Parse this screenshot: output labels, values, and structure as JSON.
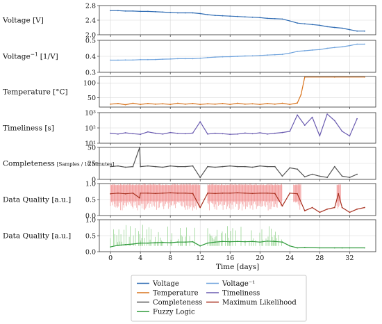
{
  "chart_data": {
    "type": "line",
    "x_axis": {
      "label": "Time [days]",
      "range": [
        -1.5,
        35.5
      ],
      "ticks": [
        0,
        4,
        8,
        12,
        16,
        20,
        24,
        28,
        32
      ],
      "tick_labels": [
        "0",
        "4",
        "8",
        "12",
        "16",
        "20",
        "24",
        "28",
        "32"
      ]
    },
    "panels": [
      {
        "id": "voltage",
        "ylabel": "Voltage [V]",
        "ylim": [
          2.0,
          2.8
        ],
        "yscale": "linear",
        "yticks": [
          2.0,
          2.4,
          2.8
        ],
        "ytick_labels": [
          "2.0",
          "2.4",
          "2.8"
        ],
        "grid": true,
        "series": [
          {
            "name": "Voltage",
            "color": "#2e6bb3",
            "x": [
              0,
              1,
              2,
              3,
              4,
              5,
              6,
              7,
              8,
              9,
              10,
              11,
              12,
              13,
              14,
              15,
              16,
              17,
              18,
              19,
              20,
              21,
              22,
              23,
              24,
              25,
              26,
              27,
              28,
              29,
              30,
              31,
              32,
              33,
              34
            ],
            "y": [
              2.66,
              2.66,
              2.65,
              2.65,
              2.64,
              2.64,
              2.63,
              2.62,
              2.61,
              2.6,
              2.6,
              2.6,
              2.58,
              2.55,
              2.53,
              2.52,
              2.51,
              2.5,
              2.49,
              2.48,
              2.47,
              2.45,
              2.44,
              2.43,
              2.38,
              2.32,
              2.3,
              2.28,
              2.26,
              2.22,
              2.2,
              2.18,
              2.14,
              2.1,
              2.1
            ]
          }
        ]
      },
      {
        "id": "inverse-voltage",
        "ylabel": "Voltage",
        "ylabel_superscript": "−1",
        "ylabel_unit": "[1/V]",
        "ylim": [
          0.3,
          0.5
        ],
        "yscale": "linear",
        "yticks": [
          0.3,
          0.4,
          0.5
        ],
        "ytick_labels": [
          "0.3",
          "0.4",
          "0.5"
        ],
        "grid": true,
        "series": [
          {
            "name": "Voltage⁻¹",
            "color": "#6fa3dd",
            "x": [
              0,
              1,
              2,
              3,
              4,
              5,
              6,
              7,
              8,
              9,
              10,
              11,
              12,
              13,
              14,
              15,
              16,
              17,
              18,
              19,
              20,
              21,
              22,
              23,
              24,
              25,
              26,
              27,
              28,
              29,
              30,
              31,
              32,
              33,
              34
            ],
            "y": [
              0.376,
              0.376,
              0.377,
              0.377,
              0.379,
              0.379,
              0.38,
              0.382,
              0.383,
              0.385,
              0.385,
              0.385,
              0.388,
              0.392,
              0.395,
              0.397,
              0.398,
              0.4,
              0.402,
              0.403,
              0.405,
              0.408,
              0.41,
              0.412,
              0.42,
              0.431,
              0.435,
              0.439,
              0.442,
              0.45,
              0.455,
              0.459,
              0.467,
              0.476,
              0.476
            ]
          }
        ]
      },
      {
        "id": "temperature",
        "ylabel": "Temperature [°C]",
        "ylim": [
          18,
          122
        ],
        "yscale": "linear",
        "yticks": [
          50,
          100
        ],
        "ytick_labels": [
          "50",
          "100"
        ],
        "grid": true,
        "series": [
          {
            "name": "Temperature",
            "color": "#d9731c",
            "x": [
              0,
              1,
              2,
              3,
              4,
              5,
              6,
              7,
              8,
              9,
              10,
              11,
              12,
              13,
              14,
              15,
              16,
              17,
              18,
              19,
              20,
              21,
              22,
              23,
              24,
              25,
              25.5,
              26,
              30,
              34
            ],
            "y": [
              28,
              30,
              26,
              31,
              27,
              30,
              28,
              29,
              27,
              31,
              28,
              30,
              27,
              29,
              28,
              30,
              27,
              31,
              28,
              29,
              27,
              30,
              28,
              31,
              27,
              32,
              60,
              120,
              120,
              120
            ]
          }
        ]
      },
      {
        "id": "timeliness",
        "ylabel": "Timeliness [s]",
        "ylim": [
          10,
          1000
        ],
        "yscale": "log",
        "yticks": [
          10,
          100,
          1000
        ],
        "ytick_labels": [
          "10¹",
          "10²",
          "10³"
        ],
        "grid": true,
        "series": [
          {
            "name": "Timeliness",
            "color": "#6a5bb0",
            "x": [
              0,
              1,
              2,
              3,
              4,
              5,
              6,
              7,
              8,
              9,
              10,
              11,
              12,
              13,
              14,
              15,
              16,
              17,
              18,
              19,
              20,
              21,
              22,
              23,
              24,
              25,
              26,
              27,
              28,
              29,
              30,
              31,
              32,
              33
            ],
            "y": [
              45,
              40,
              48,
              42,
              38,
              55,
              45,
              40,
              50,
              44,
              42,
              46,
              250,
              40,
              45,
              42,
              38,
              40,
              46,
              42,
              48,
              40,
              45,
              50,
              60,
              700,
              150,
              500,
              30,
              800,
              300,
              60,
              30,
              400
            ]
          }
        ]
      },
      {
        "id": "completeness",
        "ylabel": "Completeness",
        "ylabel_unit": "[Samples / 10 Minutes]",
        "ylim": [
          0,
          50
        ],
        "yscale": "linear",
        "yticks": [
          0,
          25,
          50
        ],
        "ytick_labels": [
          "0",
          "25",
          "50"
        ],
        "grid": true,
        "series": [
          {
            "name": "Completeness",
            "color": "#555555",
            "x": [
              0,
              1,
              2,
              3,
              3.9,
              4,
              5,
              6,
              7,
              8,
              9,
              10,
              11,
              12,
              13,
              14,
              15,
              16,
              17,
              18,
              19,
              20,
              21,
              22,
              23,
              24,
              25,
              26,
              27,
              28,
              29,
              30,
              31,
              32,
              33
            ],
            "y": [
              20,
              21,
              19,
              20,
              50,
              20,
              21,
              20,
              19,
              21,
              20,
              20,
              21,
              3,
              20,
              19,
              20,
              21,
              20,
              20,
              19,
              21,
              20,
              20,
              5,
              18,
              16,
              4,
              8,
              5,
              3,
              20,
              5,
              3,
              8
            ]
          }
        ]
      },
      {
        "id": "data-quality-ml",
        "ylabel": "Data Quality [a.u.]",
        "ylim": [
          0,
          1
        ],
        "yscale": "linear",
        "yticks": [
          0,
          0.5,
          1
        ],
        "ytick_labels": [
          "0.0",
          "0.5",
          "1.0"
        ],
        "grid": true,
        "band": {
          "color": "#f08080",
          "lower": 0.45,
          "upper": 0.95,
          "x_segments": [
            [
              0,
              12
            ],
            [
              13,
              23
            ],
            [
              24.5,
              25.5
            ],
            [
              30.3,
              30.8
            ]
          ]
        },
        "series": [
          {
            "name": "Maximum Likelihood",
            "color": "#a8301f",
            "x": [
              0,
              1,
              2,
              3,
              3.9,
              4,
              5,
              6,
              7,
              8,
              9,
              10,
              11,
              12,
              13,
              14,
              15,
              16,
              17,
              18,
              19,
              20,
              21,
              22,
              23,
              24,
              25,
              26,
              27,
              28,
              29,
              30,
              30.5,
              31,
              32,
              33,
              34
            ],
            "y": [
              0.68,
              0.7,
              0.68,
              0.7,
              0.55,
              0.7,
              0.7,
              0.69,
              0.7,
              0.71,
              0.7,
              0.7,
              0.69,
              0.25,
              0.7,
              0.69,
              0.7,
              0.7,
              0.71,
              0.7,
              0.69,
              0.7,
              0.7,
              0.69,
              0.3,
              0.7,
              0.68,
              0.15,
              0.25,
              0.1,
              0.2,
              0.25,
              0.68,
              0.25,
              0.1,
              0.2,
              0.25
            ]
          }
        ]
      },
      {
        "id": "data-quality-fuzzy",
        "ylabel": "Data Quality [a.u.]",
        "ylim": [
          0,
          1
        ],
        "yscale": "linear",
        "yticks": [
          0,
          0.5,
          1
        ],
        "ytick_labels": [
          "0.0",
          "0.5",
          "1.0"
        ],
        "grid": true,
        "spikes": {
          "color": "#8fd18a",
          "x_segments": [
            [
              0,
              12
            ],
            [
              13,
              23
            ]
          ],
          "max": 0.85
        },
        "series": [
          {
            "name": "Fuzzy Logic",
            "color": "#2e9a3a",
            "x": [
              0,
              1,
              2,
              3,
              4,
              5,
              6,
              7,
              8,
              9,
              10,
              11,
              12,
              13,
              14,
              15,
              16,
              17,
              18,
              19,
              20,
              21,
              22,
              23,
              24,
              25,
              26,
              28,
              30,
              31,
              32,
              34
            ],
            "y": [
              0.15,
              0.2,
              0.22,
              0.24,
              0.27,
              0.27,
              0.28,
              0.29,
              0.28,
              0.3,
              0.3,
              0.31,
              0.18,
              0.27,
              0.3,
              0.32,
              0.31,
              0.32,
              0.31,
              0.32,
              0.3,
              0.33,
              0.32,
              0.3,
              0.18,
              0.12,
              0.13,
              0.12,
              0.12,
              0.12,
              0.12,
              0.12
            ]
          }
        ]
      }
    ],
    "legend": {
      "placement": "bottom-center",
      "columns": 2,
      "entries": [
        {
          "name": "Voltage",
          "label": "Voltage",
          "color": "#2e6bb3"
        },
        {
          "name": "Voltage⁻¹",
          "label": "Voltage⁻¹",
          "color": "#6fa3dd"
        },
        {
          "name": "Temperature",
          "label": "Temperature",
          "color": "#d9731c"
        },
        {
          "name": "Timeliness",
          "label": "Timeliness",
          "color": "#6a5bb0"
        },
        {
          "name": "Completeness",
          "label": "Completeness",
          "color": "#555555"
        },
        {
          "name": "Maximum Likelihood",
          "label": "Maximum Likelihood",
          "color": "#a8301f"
        },
        {
          "name": "Fuzzy Logic",
          "label": "Fuzzy Logic",
          "color": "#2e9a3a"
        }
      ]
    }
  }
}
